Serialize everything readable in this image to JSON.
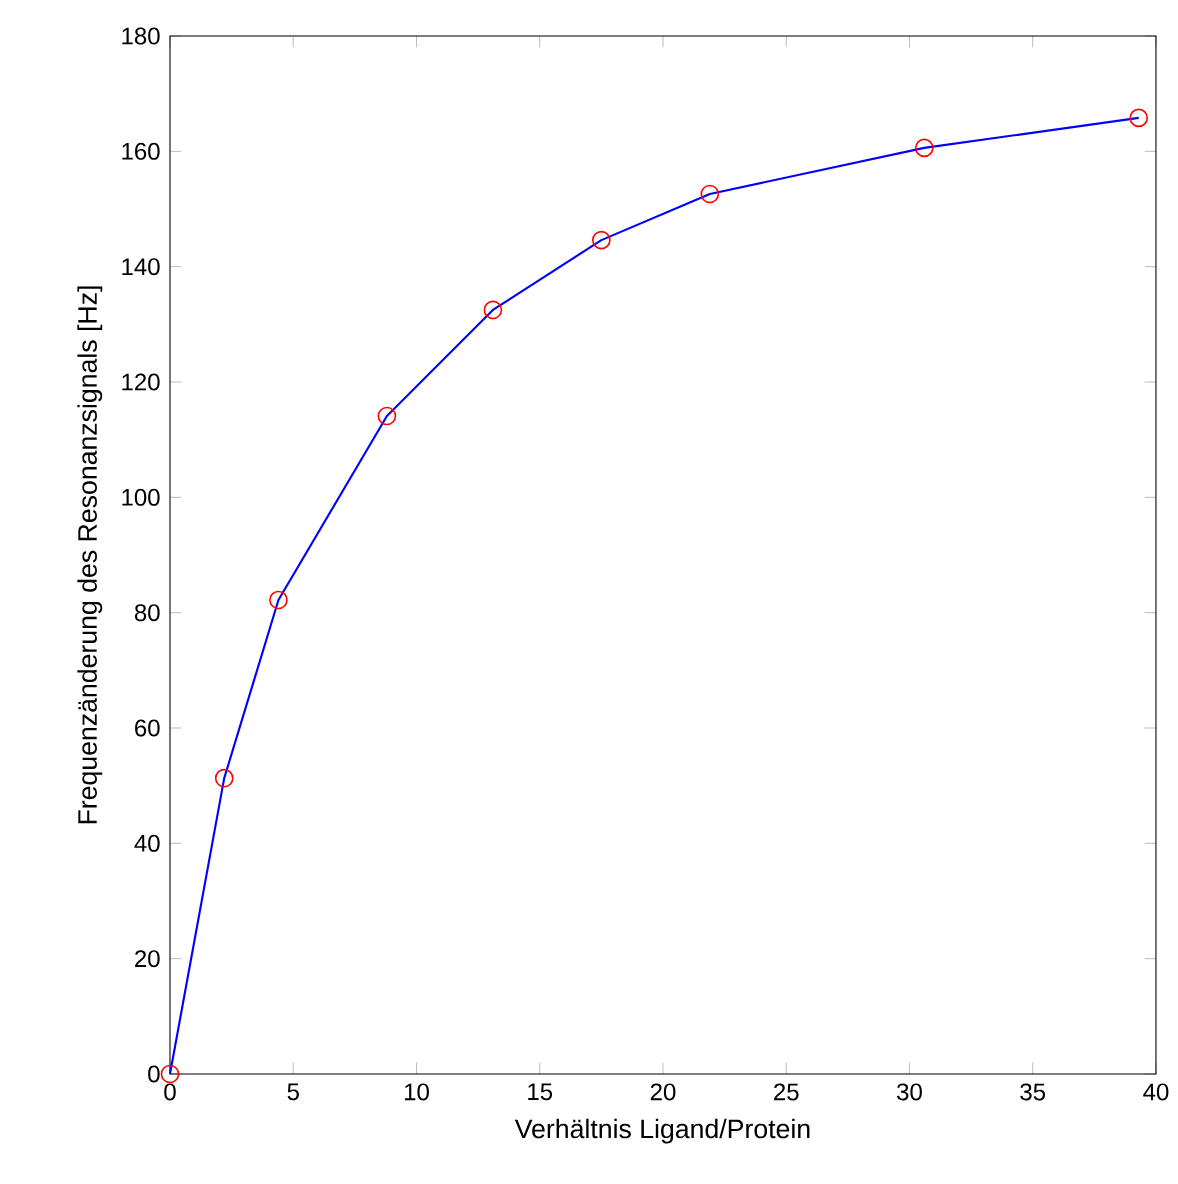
{
  "chart_data": {
    "type": "line",
    "xlabel": "Verhältnis Ligand/Protein",
    "ylabel": "Frequenzänderung des Resonanzsignals [Hz]",
    "x": [
      0,
      2.2,
      4.4,
      8.8,
      13.1,
      17.5,
      21.9,
      30.6,
      39.3
    ],
    "series": [
      {
        "color": "#0000ff",
        "values": [
          0,
          51.3,
          82.2,
          114.1,
          132.5,
          144.6,
          152.6,
          160.6,
          165.8
        ]
      },
      {
        "type": "scatter",
        "color": "#ff0000",
        "marker": "circle",
        "values": [
          0,
          51.3,
          82.2,
          114.1,
          132.5,
          144.6,
          152.6,
          160.6,
          165.8
        ]
      }
    ],
    "xlim": [
      0,
      40
    ],
    "ylim": [
      0,
      180
    ],
    "xticks": [
      0,
      5,
      10,
      15,
      20,
      25,
      30,
      35,
      40
    ],
    "yticks": [
      0,
      20,
      40,
      60,
      80,
      100,
      120,
      140,
      160,
      180
    ],
    "grid": false
  }
}
